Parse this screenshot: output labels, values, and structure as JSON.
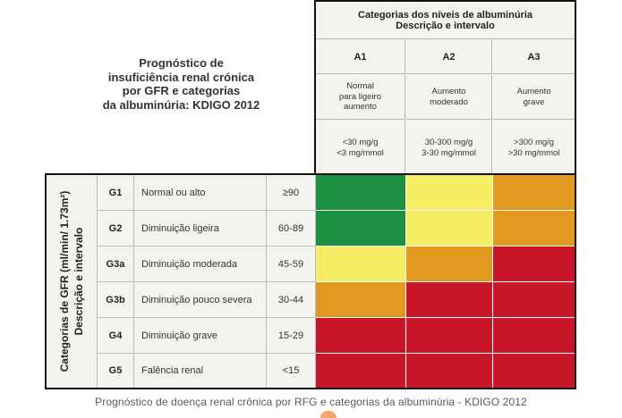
{
  "title": {
    "line1": "Prognóstico de",
    "line2": "insuficiência renal crónica",
    "line3": "por GFR e categorias",
    "line4": "da albuminúria: KDIGO 2012"
  },
  "albuminuria_header": {
    "line1": "Categorias dos níveis de albuminúria",
    "line2": "Descrição e intervalo"
  },
  "albuminuria_categories": [
    {
      "code": "A1",
      "description": [
        "Normal",
        "para ligeiro",
        "aumento"
      ],
      "range": [
        "<30 mg/g",
        "<3 mg/mmol"
      ]
    },
    {
      "code": "A2",
      "description": [
        "Aumento",
        "moderado"
      ],
      "range": [
        "30-300 mg/g",
        "3-30 mg/mmol"
      ]
    },
    {
      "code": "A3",
      "description": [
        "Aumento",
        "grave"
      ],
      "range": [
        ">300 mg/g",
        ">30 mg/mmol"
      ]
    }
  ],
  "gfr_header": {
    "line1": "Categorias de GFR (ml/min/ 1.73m²)",
    "line2": "Descrição e intervalo"
  },
  "gfr_categories": [
    {
      "code": "G1",
      "description": "Normal ou alto",
      "range": "≥90",
      "risk": [
        "green",
        "yellow",
        "orange"
      ]
    },
    {
      "code": "G2",
      "description": "Diminuição ligeira",
      "range": "60-89",
      "risk": [
        "green",
        "yellow",
        "orange"
      ]
    },
    {
      "code": "G3a",
      "description": "Diminuição moderada",
      "range": "45-59",
      "risk": [
        "yellow",
        "orange",
        "red"
      ]
    },
    {
      "code": "G3b",
      "description": "Diminuição pouco severa",
      "range": "30-44",
      "risk": [
        "orange",
        "red",
        "red"
      ]
    },
    {
      "code": "G4",
      "description": "Diminuição grave",
      "range": "15-29",
      "risk": [
        "red",
        "red",
        "red"
      ]
    },
    {
      "code": "G5",
      "description": "Falência renal",
      "range": "<15",
      "risk": [
        "red",
        "red",
        "red"
      ]
    }
  ],
  "risk_colors": {
    "green": "#1b9040",
    "yellow": "#f5ee64",
    "orange": "#e1991f",
    "red": "#c81628"
  },
  "header_fill": "#f4f4ee",
  "caption": "Prognóstico de doença renal crônica por RFG e categorias da albuminúria -  KDIGO 2012"
}
